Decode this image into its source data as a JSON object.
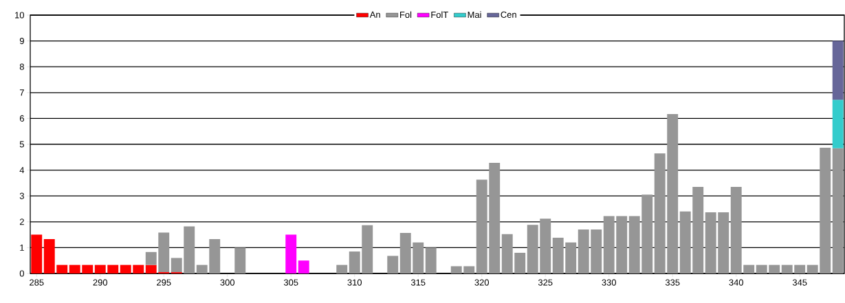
{
  "chart_data": {
    "type": "bar",
    "stacked": true,
    "categories": [
      "285",
      null,
      null,
      null,
      null,
      "290",
      null,
      null,
      null,
      null,
      "295",
      null,
      null,
      null,
      null,
      "300",
      null,
      null,
      null,
      null,
      "305",
      null,
      null,
      null,
      null,
      "310",
      null,
      null,
      null,
      null,
      "315",
      null,
      null,
      null,
      null,
      "320",
      null,
      null,
      null,
      null,
      "325",
      null,
      null,
      null,
      null,
      "330",
      null,
      null,
      null,
      null,
      "335",
      null,
      null,
      null,
      null,
      "340",
      null,
      null,
      null,
      null,
      "345",
      null,
      null,
      null
    ],
    "series": [
      {
        "name": "An",
        "color": "#ff0000",
        "values": [
          1.5,
          1.33,
          0.33,
          0.33,
          0.33,
          0.33,
          0.33,
          0.33,
          0.33,
          0.33,
          0.05,
          0.05,
          null,
          null,
          null,
          null,
          null,
          null,
          null,
          null,
          null,
          null,
          null,
          null,
          null,
          null,
          null,
          null,
          null,
          null,
          null,
          null,
          null,
          null,
          null,
          null,
          null,
          null,
          null,
          null,
          null,
          null,
          null,
          null,
          null,
          null,
          null,
          null,
          null,
          null,
          null,
          null,
          null,
          null,
          null,
          null,
          null,
          null,
          null,
          null,
          null,
          null,
          null,
          null
        ]
      },
      {
        "name": "Fol",
        "color": "#969696",
        "values": [
          null,
          null,
          null,
          null,
          null,
          null,
          null,
          null,
          null,
          0.5,
          1.53,
          0.55,
          1.82,
          0.33,
          1.33,
          null,
          1.0,
          null,
          null,
          null,
          null,
          null,
          null,
          null,
          0.33,
          0.85,
          1.87,
          null,
          0.68,
          1.57,
          1.2,
          1.0,
          null,
          0.28,
          0.28,
          3.63,
          4.28,
          1.52,
          0.8,
          1.88,
          2.12,
          1.38,
          1.2,
          1.7,
          1.7,
          2.22,
          2.22,
          2.22,
          3.05,
          4.65,
          6.17,
          2.4,
          3.35,
          2.37,
          2.37,
          3.35,
          0.33,
          0.33,
          0.33,
          0.33,
          0.33,
          0.33,
          4.87,
          4.85
        ]
      },
      {
        "name": "FolT",
        "color": "#ff00ff",
        "values": [
          null,
          null,
          null,
          null,
          null,
          null,
          null,
          null,
          null,
          null,
          null,
          null,
          null,
          null,
          null,
          null,
          null,
          null,
          null,
          null,
          1.5,
          0.5,
          null,
          null,
          null,
          null,
          null,
          null,
          null,
          null,
          null,
          null,
          null,
          null,
          null,
          null,
          null,
          null,
          null,
          null,
          null,
          null,
          null,
          null,
          null,
          null,
          null,
          null,
          null,
          null,
          null,
          null,
          null,
          null,
          null,
          null,
          null,
          null,
          null,
          null,
          null,
          null,
          null,
          null
        ]
      },
      {
        "name": "Mai",
        "color": "#33cccc",
        "values": [
          null,
          null,
          null,
          null,
          null,
          null,
          null,
          null,
          null,
          null,
          null,
          null,
          null,
          null,
          null,
          null,
          null,
          null,
          null,
          null,
          null,
          null,
          null,
          null,
          null,
          null,
          null,
          null,
          null,
          null,
          null,
          null,
          null,
          null,
          null,
          null,
          null,
          null,
          null,
          null,
          null,
          null,
          null,
          null,
          null,
          null,
          null,
          null,
          null,
          null,
          null,
          null,
          null,
          null,
          null,
          null,
          null,
          null,
          null,
          null,
          null,
          null,
          null,
          1.87
        ]
      },
      {
        "name": "Cen",
        "color": "#666699",
        "values": [
          null,
          null,
          null,
          null,
          null,
          null,
          null,
          null,
          null,
          null,
          null,
          null,
          null,
          null,
          null,
          null,
          null,
          null,
          null,
          null,
          null,
          null,
          null,
          null,
          null,
          null,
          null,
          null,
          null,
          null,
          null,
          null,
          null,
          null,
          null,
          null,
          null,
          null,
          null,
          null,
          null,
          null,
          null,
          null,
          null,
          null,
          null,
          null,
          null,
          null,
          null,
          null,
          null,
          null,
          null,
          null,
          null,
          null,
          null,
          null,
          null,
          null,
          null,
          2.28
        ]
      }
    ],
    "ylim": [
      0,
      10
    ],
    "yticks": [
      0,
      1,
      2,
      3,
      4,
      5,
      6,
      7,
      8,
      9,
      10
    ],
    "grid": "y",
    "legend": "top"
  }
}
